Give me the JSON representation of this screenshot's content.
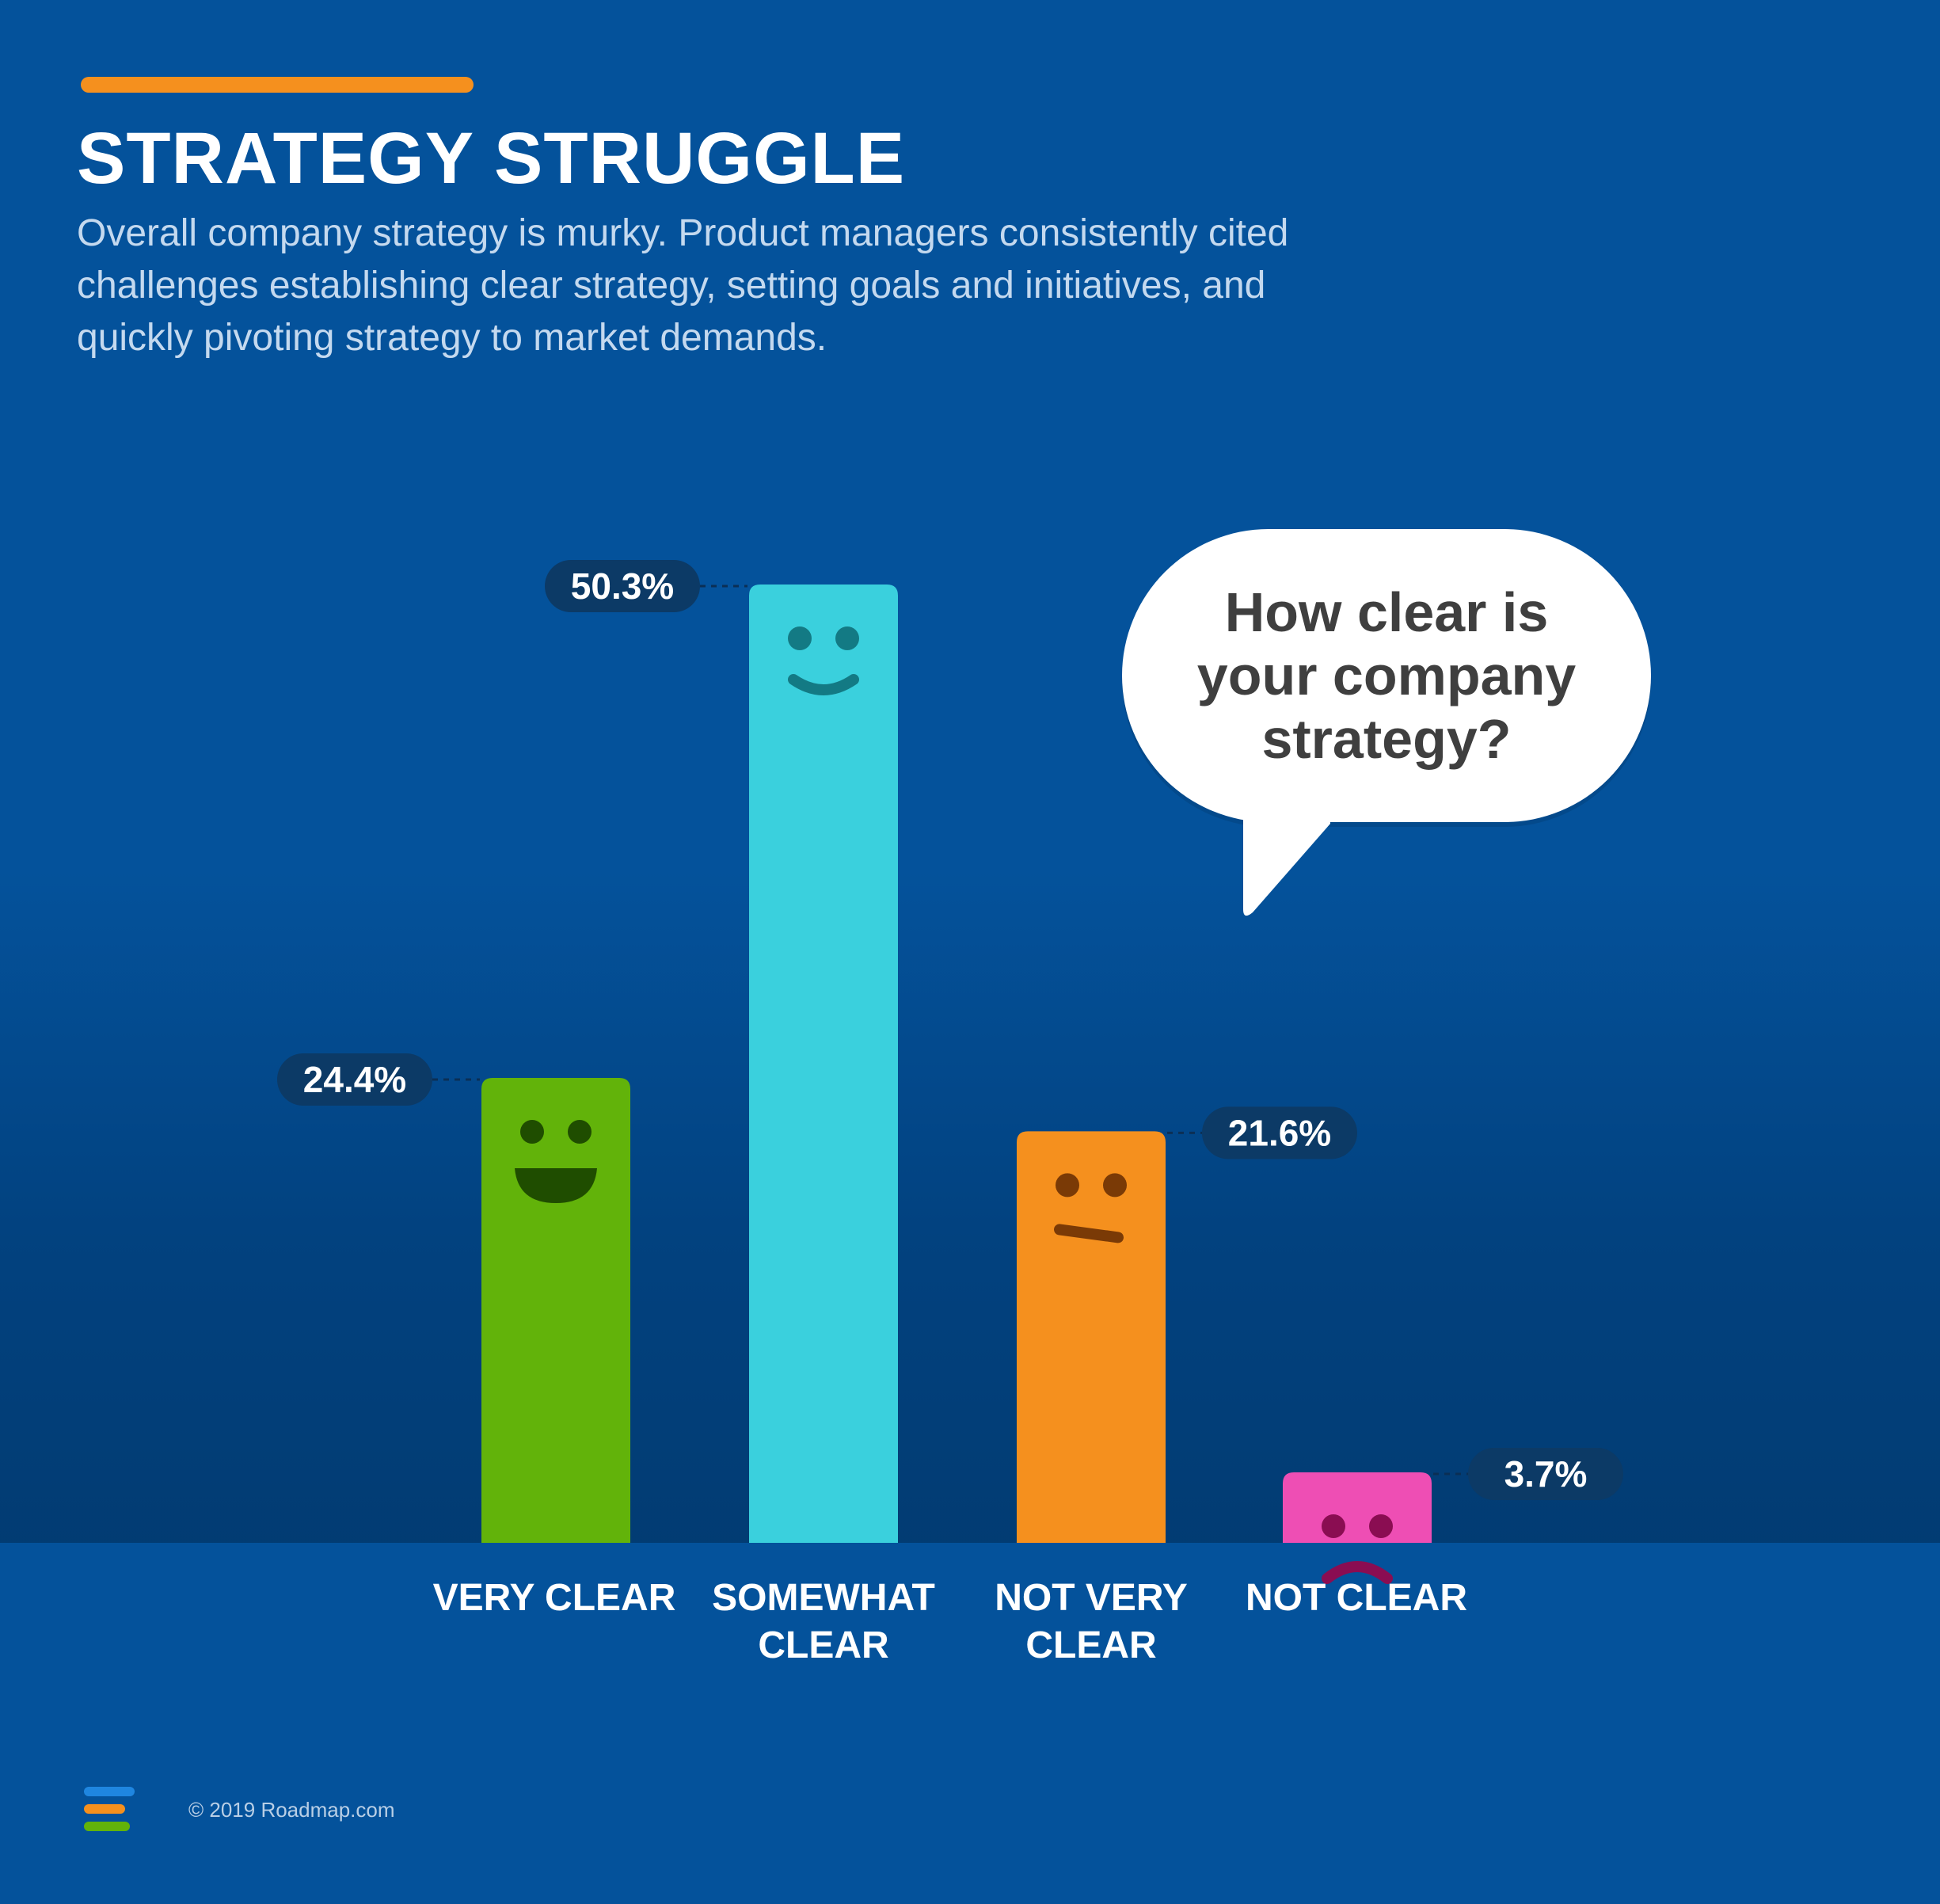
{
  "header": {
    "title": "STRATEGY STRUGGLE",
    "subtitle": "Overall company strategy is murky. Product managers consistently cited challenges establishing clear strategy, setting goals and initiatives, and quickly pivoting strategy to market demands."
  },
  "bubble": {
    "question": "How clear is your company strategy?"
  },
  "footer": {
    "copyright": "© 2019 Roadmap.com"
  },
  "colors": {
    "background": "#04529b",
    "accent": "#f5901e",
    "label_pill": "#0c3a66"
  },
  "chart_data": {
    "type": "bar",
    "categories": [
      "VERY CLEAR",
      "SOMEWHAT CLEAR",
      "NOT VERY CLEAR",
      "NOT CLEAR"
    ],
    "values": [
      24.4,
      50.3,
      21.6,
      3.7
    ],
    "value_labels": [
      "24.4%",
      "50.3%",
      "21.6%",
      "3.7%"
    ],
    "unit": "%",
    "ylim": [
      0,
      50.3
    ],
    "grid": false,
    "legend": "none",
    "colors": [
      "#62b30a",
      "#3ad0dd",
      "#f5901e",
      "#ee4eb4"
    ],
    "faces": [
      "big-smile-face-icon",
      "smile-face-icon",
      "neutral-face-icon",
      "sad-face-icon"
    ],
    "title": "",
    "xlabel": "",
    "ylabel": ""
  }
}
